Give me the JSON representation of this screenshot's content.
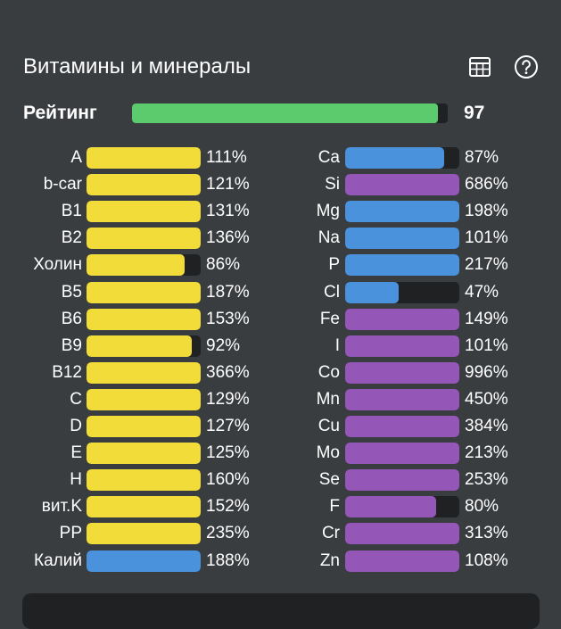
{
  "header": {
    "title": "Витамины и минералы",
    "table_icon": "table-icon",
    "help_icon": "help-circle-icon"
  },
  "rating": {
    "label": "Рейтинг",
    "value": "97",
    "fill_percent": 97,
    "color": "#5ccb6e"
  },
  "colors": {
    "vitamin": "#f2dc3a",
    "mineral_blue": "#4a92dc",
    "mineral_purple": "#9457b8",
    "track": "#1f2123",
    "background": "#3a3d40"
  },
  "vitamins": [
    {
      "label": "A",
      "pct": "111%",
      "fill": 100,
      "color": "yellow"
    },
    {
      "label": "b-car",
      "pct": "121%",
      "fill": 100,
      "color": "yellow"
    },
    {
      "label": "B1",
      "pct": "131%",
      "fill": 100,
      "color": "yellow"
    },
    {
      "label": "B2",
      "pct": "136%",
      "fill": 100,
      "color": "yellow"
    },
    {
      "label": "Холин",
      "pct": "86%",
      "fill": 86,
      "color": "yellow"
    },
    {
      "label": "B5",
      "pct": "187%",
      "fill": 100,
      "color": "yellow"
    },
    {
      "label": "B6",
      "pct": "153%",
      "fill": 100,
      "color": "yellow"
    },
    {
      "label": "B9",
      "pct": "92%",
      "fill": 92,
      "color": "yellow"
    },
    {
      "label": "B12",
      "pct": "366%",
      "fill": 100,
      "color": "yellow"
    },
    {
      "label": "C",
      "pct": "129%",
      "fill": 100,
      "color": "yellow"
    },
    {
      "label": "D",
      "pct": "127%",
      "fill": 100,
      "color": "yellow"
    },
    {
      "label": "E",
      "pct": "125%",
      "fill": 100,
      "color": "yellow"
    },
    {
      "label": "H",
      "pct": "160%",
      "fill": 100,
      "color": "yellow"
    },
    {
      "label": "вит.K",
      "pct": "152%",
      "fill": 100,
      "color": "yellow"
    },
    {
      "label": "PP",
      "pct": "235%",
      "fill": 100,
      "color": "yellow"
    },
    {
      "label": "Калий",
      "pct": "188%",
      "fill": 100,
      "color": "blue"
    }
  ],
  "minerals": [
    {
      "label": "Ca",
      "pct": "87%",
      "fill": 87,
      "color": "blue"
    },
    {
      "label": "Si",
      "pct": "686%",
      "fill": 100,
      "color": "purple"
    },
    {
      "label": "Mg",
      "pct": "198%",
      "fill": 100,
      "color": "blue"
    },
    {
      "label": "Na",
      "pct": "101%",
      "fill": 100,
      "color": "blue"
    },
    {
      "label": "P",
      "pct": "217%",
      "fill": 100,
      "color": "blue"
    },
    {
      "label": "Cl",
      "pct": "47%",
      "fill": 47,
      "color": "blue"
    },
    {
      "label": "Fe",
      "pct": "149%",
      "fill": 100,
      "color": "purple"
    },
    {
      "label": "I",
      "pct": "101%",
      "fill": 100,
      "color": "purple"
    },
    {
      "label": "Co",
      "pct": "996%",
      "fill": 100,
      "color": "purple"
    },
    {
      "label": "Mn",
      "pct": "450%",
      "fill": 100,
      "color": "purple"
    },
    {
      "label": "Cu",
      "pct": "384%",
      "fill": 100,
      "color": "purple"
    },
    {
      "label": "Mo",
      "pct": "213%",
      "fill": 100,
      "color": "purple"
    },
    {
      "label": "Se",
      "pct": "253%",
      "fill": 100,
      "color": "purple"
    },
    {
      "label": "F",
      "pct": "80%",
      "fill": 80,
      "color": "purple"
    },
    {
      "label": "Cr",
      "pct": "313%",
      "fill": 100,
      "color": "purple"
    },
    {
      "label": "Zn",
      "pct": "108%",
      "fill": 100,
      "color": "purple"
    }
  ]
}
